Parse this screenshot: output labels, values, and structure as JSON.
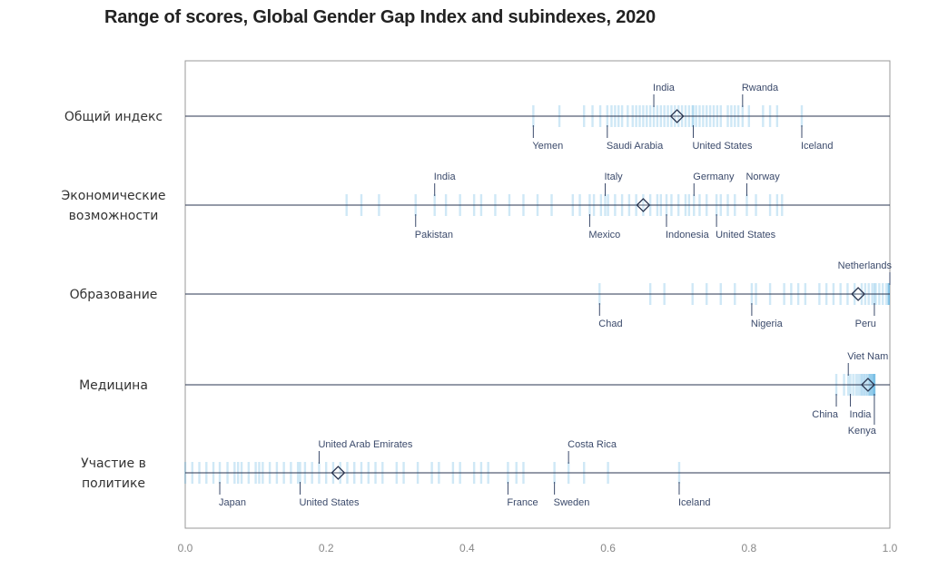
{
  "chart_data": {
    "type": "strip",
    "title": "Range of scores, Global Gender Gap Index and subindexes, 2020",
    "xlim": [
      0,
      1
    ],
    "xticks": [
      "0.0",
      "0.2",
      "0.4",
      "0.6",
      "0.8",
      "1.0"
    ],
    "colors": {
      "strip": "#5fb3e0",
      "line": "#2a3550",
      "axis": "#999999",
      "label": "#3b4a6b"
    },
    "rows": [
      {
        "label": [
          "Общий индекс"
        ],
        "mean": 0.698,
        "scores": [
          0.494,
          0.531,
          0.566,
          0.578,
          0.589,
          0.599,
          0.605,
          0.61,
          0.615,
          0.62,
          0.628,
          0.635,
          0.64,
          0.645,
          0.65,
          0.655,
          0.66,
          0.665,
          0.67,
          0.675,
          0.68,
          0.685,
          0.69,
          0.695,
          0.7,
          0.705,
          0.71,
          0.715,
          0.72,
          0.721,
          0.725,
          0.73,
          0.735,
          0.74,
          0.745,
          0.75,
          0.755,
          0.76,
          0.77,
          0.775,
          0.78,
          0.785,
          0.791,
          0.8,
          0.82,
          0.83,
          0.84,
          0.875
        ],
        "countries": [
          {
            "name": "India",
            "value": 0.665,
            "side": "above"
          },
          {
            "name": "Rwanda",
            "value": 0.791,
            "side": "above"
          },
          {
            "name": "Yemen",
            "value": 0.494,
            "side": "below"
          },
          {
            "name": "Saudi Arabia",
            "value": 0.599,
            "side": "below"
          },
          {
            "name": "United States",
            "value": 0.721,
            "side": "below"
          },
          {
            "name": "Iceland",
            "value": 0.875,
            "side": "below"
          }
        ]
      },
      {
        "label": [
          "Экономические",
          "возможности"
        ],
        "mean": 0.65,
        "scores": [
          0.229,
          0.25,
          0.275,
          0.327,
          0.354,
          0.37,
          0.39,
          0.41,
          0.42,
          0.44,
          0.46,
          0.48,
          0.5,
          0.52,
          0.55,
          0.56,
          0.574,
          0.58,
          0.59,
          0.596,
          0.6,
          0.61,
          0.62,
          0.63,
          0.64,
          0.65,
          0.66,
          0.67,
          0.675,
          0.683,
          0.69,
          0.7,
          0.71,
          0.715,
          0.722,
          0.73,
          0.74,
          0.754,
          0.76,
          0.77,
          0.78,
          0.797,
          0.81,
          0.83,
          0.84,
          0.847
        ],
        "countries": [
          {
            "name": "India",
            "value": 0.354,
            "side": "above"
          },
          {
            "name": "Italy",
            "value": 0.596,
            "side": "above"
          },
          {
            "name": "Germany",
            "value": 0.722,
            "side": "above"
          },
          {
            "name": "Norway",
            "value": 0.797,
            "side": "above"
          },
          {
            "name": "Pakistan",
            "value": 0.327,
            "side": "below"
          },
          {
            "name": "Mexico",
            "value": 0.574,
            "side": "below"
          },
          {
            "name": "Indonesia",
            "value": 0.683,
            "side": "below"
          },
          {
            "name": "United States",
            "value": 0.754,
            "side": "below"
          }
        ]
      },
      {
        "label": [
          "Образование"
        ],
        "mean": 0.955,
        "scores": [
          0.588,
          0.66,
          0.68,
          0.72,
          0.74,
          0.76,
          0.78,
          0.804,
          0.81,
          0.83,
          0.85,
          0.86,
          0.87,
          0.88,
          0.9,
          0.91,
          0.92,
          0.93,
          0.94,
          0.95,
          0.96,
          0.965,
          0.97,
          0.975,
          0.978,
          0.98,
          0.985,
          0.99,
          0.995,
          1.0,
          1.0,
          1.0,
          1.0
        ],
        "countries": [
          {
            "name": "Netherlands",
            "value": 1.0,
            "side": "above"
          },
          {
            "name": "Chad",
            "value": 0.588,
            "side": "below"
          },
          {
            "name": "Nigeria",
            "value": 0.804,
            "side": "below"
          },
          {
            "name": "Peru",
            "value": 0.978,
            "side": "below"
          }
        ]
      },
      {
        "label": [
          "Медицина"
        ],
        "mean": 0.969,
        "scores": [
          0.924,
          0.935,
          0.941,
          0.944,
          0.948,
          0.952,
          0.955,
          0.958,
          0.96,
          0.962,
          0.964,
          0.966,
          0.968,
          0.97,
          0.971,
          0.972,
          0.973,
          0.974,
          0.975,
          0.976,
          0.977,
          0.978,
          0.978,
          0.978,
          0.978
        ],
        "countries": [
          {
            "name": "Viet Nam",
            "value": 0.941,
            "side": "above"
          },
          {
            "name": "China",
            "value": 0.924,
            "side": "below"
          },
          {
            "name": "India",
            "value": 0.944,
            "side": "below"
          },
          {
            "name": "Kenya",
            "value": 0.978,
            "side": "below-far"
          }
        ]
      },
      {
        "label": [
          "Участие в",
          "политике"
        ],
        "mean": 0.217,
        "scores": [
          0.0,
          0.01,
          0.02,
          0.03,
          0.04,
          0.049,
          0.06,
          0.07,
          0.075,
          0.08,
          0.09,
          0.1,
          0.105,
          0.11,
          0.12,
          0.13,
          0.14,
          0.15,
          0.16,
          0.163,
          0.17,
          0.18,
          0.19,
          0.2,
          0.21,
          0.22,
          0.23,
          0.24,
          0.25,
          0.26,
          0.27,
          0.28,
          0.3,
          0.31,
          0.33,
          0.35,
          0.36,
          0.38,
          0.39,
          0.41,
          0.42,
          0.43,
          0.458,
          0.47,
          0.48,
          0.524,
          0.544,
          0.566,
          0.6,
          0.701
        ],
        "countries": [
          {
            "name": "United Arab Emirates",
            "value": 0.19,
            "side": "above"
          },
          {
            "name": "Costa Rica",
            "value": 0.544,
            "side": "above"
          },
          {
            "name": "Japan",
            "value": 0.049,
            "side": "below"
          },
          {
            "name": "United States",
            "value": 0.163,
            "side": "below"
          },
          {
            "name": "France",
            "value": 0.458,
            "side": "below"
          },
          {
            "name": "Sweden",
            "value": 0.524,
            "side": "below"
          },
          {
            "name": "Iceland",
            "value": 0.701,
            "side": "below"
          }
        ]
      }
    ]
  }
}
